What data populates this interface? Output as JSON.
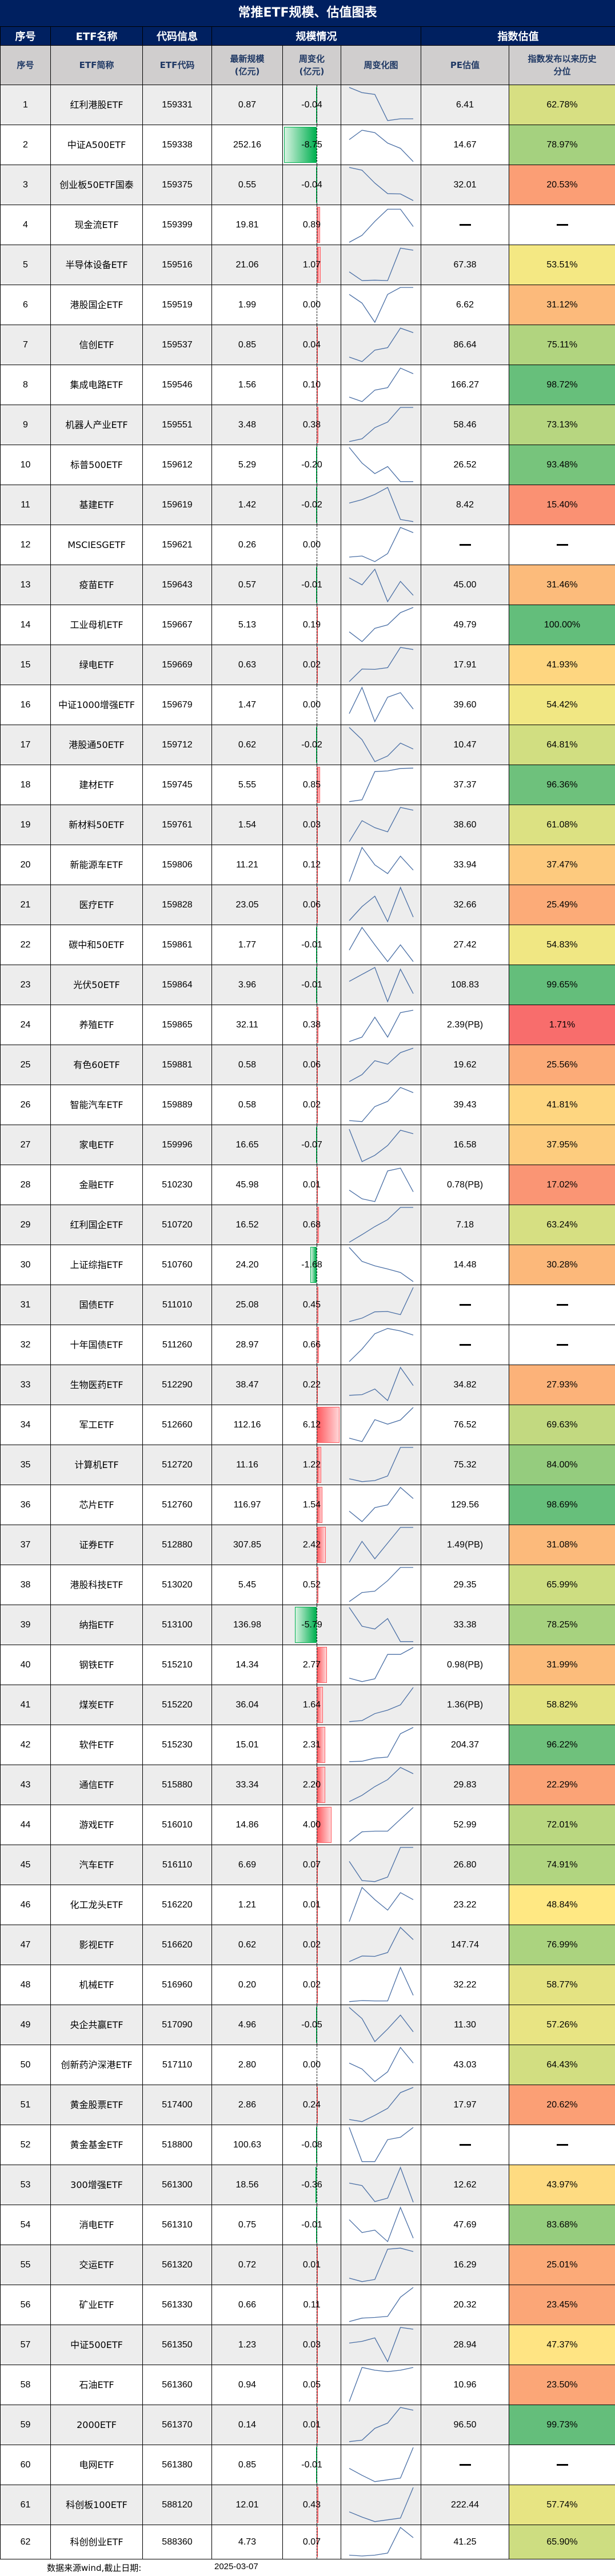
{
  "title": "常推ETF规模、估值图表",
  "header_groups": {
    "seq": "序号",
    "name": "ETF名称",
    "code": "代码信息",
    "scale": "规模情况",
    "valuation": "指数估值"
  },
  "header_cols": {
    "seq": "序号",
    "name": "ETF简称",
    "code": "ETF代码",
    "latest_line1": "最新规模",
    "latest_line2": "(亿元)",
    "chg_line1": "周变化",
    "chg_line2": "(亿元)",
    "chart": "周变化图",
    "pe": "PE估值",
    "pct_line1": "指数发布以来历史",
    "pct_line2": "分位"
  },
  "colors": {
    "title_bg": "#002060",
    "subheader_bg": "#D0CECE",
    "pos_bar": "#FF5A5F",
    "neg_bar": "#00B050",
    "spark_line": "#4A6FA5",
    "scale_low": "#F8696B",
    "scale_mid": "#FFEB84",
    "scale_high": "#63BE7B"
  },
  "rows": [
    {
      "no": "1",
      "name": "红利港股ETF",
      "code": "159331",
      "size": "0.87",
      "chg": "-0.04",
      "pe": "6.41",
      "pct": "62.78%",
      "spark": [
        1,
        0.85,
        0.8,
        0.05,
        0.1,
        0.1
      ]
    },
    {
      "no": "2",
      "name": "中证A500ETF",
      "code": "159338",
      "size": "252.16",
      "chg": "-8.75",
      "pe": "14.67",
      "pct": "78.97%",
      "spark": [
        0.65,
        0.92,
        0.85,
        0.55,
        0.4,
        0.02
      ]
    },
    {
      "no": "3",
      "name": "创业板50ETF国泰",
      "code": "159375",
      "size": "0.55",
      "chg": "-0.04",
      "pe": "32.01",
      "pct": "20.53%",
      "spark": [
        1,
        0.92,
        0.55,
        0.25,
        0.24,
        0.05
      ]
    },
    {
      "no": "4",
      "name": "现金流ETF",
      "code": "159399",
      "size": "19.81",
      "chg": "0.89",
      "pe": "—",
      "pct": "—",
      "spark": [
        0,
        0.2,
        0.6,
        0.95,
        0.95,
        0.45
      ]
    },
    {
      "no": "5",
      "name": "半导体设备ETF",
      "code": "159516",
      "size": "21.06",
      "chg": "1.07",
      "pe": "67.38",
      "pct": "53.51%",
      "spark": [
        0.3,
        0.05,
        0.06,
        0.05,
        0.98,
        0.92
      ]
    },
    {
      "no": "6",
      "name": "港股国企ETF",
      "code": "159519",
      "size": "1.99",
      "chg": "0.00",
      "pe": "6.62",
      "pct": "31.12%",
      "spark": [
        0.8,
        0.55,
        0.0,
        0.8,
        1,
        1
      ]
    },
    {
      "no": "7",
      "name": "信创ETF",
      "code": "159537",
      "size": "0.85",
      "chg": "0.04",
      "pe": "86.64",
      "pct": "75.11%",
      "spark": [
        0.15,
        0.02,
        0.35,
        0.42,
        0.98,
        0.85
      ]
    },
    {
      "no": "8",
      "name": "集成电路ETF",
      "code": "159546",
      "size": "1.56",
      "chg": "0.10",
      "pe": "166.27",
      "pct": "98.72%",
      "spark": [
        0.15,
        0.02,
        0.35,
        0.42,
        0.98,
        0.82
      ]
    },
    {
      "no": "9",
      "name": "机器人产业ETF",
      "code": "159551",
      "size": "3.48",
      "chg": "0.38",
      "pe": "58.46",
      "pct": "73.13%",
      "spark": [
        0.02,
        0.1,
        0.42,
        0.58,
        1,
        1
      ]
    },
    {
      "no": "10",
      "name": "标普500ETF",
      "code": "159612",
      "size": "5.29",
      "chg": "-0.20",
      "pe": "26.52",
      "pct": "93.48%",
      "spark": [
        1,
        0.55,
        0.25,
        0.45,
        0.02,
        0.02
      ]
    },
    {
      "no": "11",
      "name": "基建ETF",
      "code": "159619",
      "size": "1.42",
      "chg": "-0.02",
      "pe": "8.42",
      "pct": "15.40%",
      "spark": [
        0.55,
        0.65,
        0.8,
        1,
        0.08,
        0.02
      ]
    },
    {
      "no": "12",
      "name": "MSCIESGETF",
      "code": "159621",
      "size": "0.26",
      "chg": "0.00",
      "pe": "—",
      "pct": "—",
      "spark": [
        0.15,
        0.18,
        0.02,
        0.25,
        1,
        0.85
      ]
    },
    {
      "no": "13",
      "name": "疫苗ETF",
      "code": "159643",
      "size": "0.57",
      "chg": "-0.01",
      "pe": "45.00",
      "pct": "31.46%",
      "spark": [
        0.7,
        0.5,
        0.95,
        0.02,
        0.6,
        0.2
      ]
    },
    {
      "no": "14",
      "name": "工业母机ETF",
      "code": "159667",
      "size": "5.13",
      "chg": "0.19",
      "pe": "49.79",
      "pct": "100.00%",
      "spark": [
        0.3,
        0.02,
        0.4,
        0.5,
        0.85,
        1
      ]
    },
    {
      "no": "15",
      "name": "绿电ETF",
      "code": "159669",
      "size": "0.63",
      "chg": "0.02",
      "pe": "17.91",
      "pct": "41.93%",
      "spark": [
        0.02,
        0.38,
        0.37,
        0.42,
        1,
        0.94
      ]
    },
    {
      "no": "16",
      "name": "中证1000增强ETF",
      "code": "159679",
      "size": "1.47",
      "chg": "0.00",
      "pe": "39.60",
      "pct": "54.42%",
      "spark": [
        0.25,
        1,
        0.02,
        0.72,
        0.85,
        0.38
      ]
    },
    {
      "no": "17",
      "name": "港股通50ETF",
      "code": "159712",
      "size": "0.62",
      "chg": "-0.02",
      "pe": "10.47",
      "pct": "64.81%",
      "spark": [
        1,
        0.65,
        0.02,
        0.18,
        0.55,
        0.38
      ]
    },
    {
      "no": "18",
      "name": "建材ETF",
      "code": "159745",
      "size": "5.55",
      "chg": "0.85",
      "pe": "37.37",
      "pct": "96.36%",
      "spark": [
        0.02,
        0.07,
        0.88,
        0.9,
        0.97,
        0.98
      ]
    },
    {
      "no": "19",
      "name": "新材料50ETF",
      "code": "159761",
      "size": "1.54",
      "chg": "0.03",
      "pe": "38.60",
      "pct": "61.08%",
      "spark": [
        0.02,
        0.62,
        0.42,
        0.3,
        1,
        0.92
      ]
    },
    {
      "no": "20",
      "name": "新能源车ETF",
      "code": "159806",
      "size": "11.21",
      "chg": "0.12",
      "pe": "33.94",
      "pct": "37.47%",
      "spark": [
        0.02,
        1,
        0.5,
        0.25,
        0.75,
        0.35
      ]
    },
    {
      "no": "21",
      "name": "医疗ETF",
      "code": "159828",
      "size": "23.05",
      "chg": "0.06",
      "pe": "32.66",
      "pct": "25.49%",
      "spark": [
        0.05,
        0.45,
        0.75,
        0.02,
        1,
        0.15
      ]
    },
    {
      "no": "22",
      "name": "碳中和50ETF",
      "code": "159861",
      "size": "1.77",
      "chg": "-0.01",
      "pe": "27.42",
      "pct": "54.83%",
      "spark": [
        0.35,
        1,
        0.5,
        0.02,
        0.5,
        0.02
      ]
    },
    {
      "no": "23",
      "name": "光伏50ETF",
      "code": "159864",
      "size": "3.96",
      "chg": "-0.01",
      "pe": "108.83",
      "pct": "99.65%",
      "spark": [
        0.6,
        0.8,
        1,
        0.02,
        0.95,
        0.25
      ]
    },
    {
      "no": "24",
      "name": "养殖ETF",
      "code": "159865",
      "size": "32.11",
      "chg": "0.38",
      "pe": "2.39(PB)",
      "pct": "1.71%",
      "spark": [
        0.02,
        0.15,
        0.72,
        0.15,
        0.85,
        0.92
      ]
    },
    {
      "no": "25",
      "name": "有色60ETF",
      "code": "159881",
      "size": "0.58",
      "chg": "0.06",
      "pe": "19.62",
      "pct": "25.56%",
      "spark": [
        0.02,
        0.22,
        0.62,
        0.52,
        0.85,
        0.98
      ]
    },
    {
      "no": "26",
      "name": "智能汽车ETF",
      "code": "159889",
      "size": "0.58",
      "chg": "0.02",
      "pe": "39.43",
      "pct": "41.81%",
      "spark": [
        0.05,
        0.02,
        0.45,
        0.6,
        1,
        0.85
      ]
    },
    {
      "no": "27",
      "name": "家电ETF",
      "code": "159996",
      "size": "16.65",
      "chg": "-0.07",
      "pe": "16.58",
      "pct": "37.95%",
      "spark": [
        0.95,
        0.02,
        0.2,
        0.48,
        0.92,
        0.82
      ]
    },
    {
      "no": "28",
      "name": "金融ETF",
      "code": "510230",
      "size": "45.98",
      "chg": "0.01",
      "pe": "0.78(PB)",
      "pct": "17.02%",
      "spark": [
        0.35,
        0.1,
        0.02,
        0.9,
        0.98,
        0.3
      ]
    },
    {
      "no": "29",
      "name": "红利国企ETF",
      "code": "510720",
      "size": "16.52",
      "chg": "0.68",
      "pe": "7.18",
      "pct": "63.24%",
      "spark": [
        0.0,
        0.22,
        0.45,
        0.65,
        1,
        1
      ]
    },
    {
      "no": "30",
      "name": "上证综指ETF",
      "code": "510760",
      "size": "24.20",
      "chg": "-1.68",
      "pe": "14.48",
      "pct": "30.28%",
      "spark": [
        1,
        0.6,
        0.47,
        0.38,
        0.28,
        0.02
      ]
    },
    {
      "no": "31",
      "name": "国债ETF",
      "code": "511010",
      "size": "25.08",
      "chg": "0.45",
      "pe": "—",
      "pct": "—",
      "spark": [
        0.02,
        0.12,
        0.3,
        0.31,
        0.22,
        1
      ]
    },
    {
      "no": "32",
      "name": "十年国债ETF",
      "code": "511260",
      "size": "28.97",
      "chg": "0.66",
      "pe": "—",
      "pct": "—",
      "spark": [
        0.02,
        0.38,
        0.82,
        0.97,
        0.9,
        0.78
      ]
    },
    {
      "no": "33",
      "name": "生物医药ETF",
      "code": "512290",
      "size": "38.47",
      "chg": "0.22",
      "pe": "34.82",
      "pct": "27.93%",
      "spark": [
        0.2,
        0.22,
        0.38,
        0.05,
        1,
        0.48
      ]
    },
    {
      "no": "34",
      "name": "军工ETF",
      "code": "512660",
      "size": "112.16",
      "chg": "6.12",
      "pe": "76.52",
      "pct": "69.63%",
      "spark": [
        0.12,
        0.02,
        0.65,
        0.52,
        0.64,
        1
      ]
    },
    {
      "no": "35",
      "name": "计算机ETF",
      "code": "512720",
      "size": "11.16",
      "chg": "1.22",
      "pe": "75.32",
      "pct": "84.00%",
      "spark": [
        0.1,
        0.02,
        0.05,
        0.18,
        1,
        1
      ]
    },
    {
      "no": "36",
      "name": "芯片ETF",
      "code": "512760",
      "size": "116.97",
      "chg": "1.54",
      "pe": "129.56",
      "pct": "98.69%",
      "spark": [
        0.32,
        0.02,
        0.42,
        0.5,
        1,
        0.68
      ]
    },
    {
      "no": "37",
      "name": "证券ETF",
      "code": "512880",
      "size": "307.85",
      "chg": "2.42",
      "pe": "1.49(PB)",
      "pct": "31.08%",
      "spark": [
        0.0,
        0.6,
        0.1,
        0.55,
        1,
        1
      ]
    },
    {
      "no": "38",
      "name": "港股科技ETF",
      "code": "513020",
      "size": "5.45",
      "chg": "0.52",
      "pe": "29.35",
      "pct": "65.99%",
      "spark": [
        0.02,
        0.28,
        0.32,
        0.62,
        1,
        1
      ]
    },
    {
      "no": "39",
      "name": "纳指ETF",
      "code": "513100",
      "size": "136.98",
      "chg": "-5.79",
      "pe": "33.38",
      "pct": "78.25%",
      "spark": [
        1,
        0.46,
        0.38,
        0.68,
        0.02,
        0.02
      ]
    },
    {
      "no": "40",
      "name": "钢铁ETF",
      "code": "515210",
      "size": "14.34",
      "chg": "2.77",
      "pe": "0.98(PB)",
      "pct": "31.99%",
      "spark": [
        0.12,
        0.02,
        0.1,
        0.8,
        0.8,
        1
      ]
    },
    {
      "no": "41",
      "name": "煤炭ETF",
      "code": "515220",
      "size": "36.04",
      "chg": "1.64",
      "pe": "1.36(PB)",
      "pct": "58.82%",
      "spark": [
        0.02,
        0.05,
        0.25,
        0.35,
        0.5,
        1
      ]
    },
    {
      "no": "42",
      "name": "软件ETF",
      "code": "515230",
      "size": "15.01",
      "chg": "2.31",
      "pe": "204.37",
      "pct": "96.22%",
      "spark": [
        0.02,
        0.03,
        0.12,
        0.15,
        0.82,
        1
      ]
    },
    {
      "no": "43",
      "name": "通信ETF",
      "code": "515880",
      "size": "33.34",
      "chg": "2.20",
      "pe": "29.83",
      "pct": "22.29%",
      "spark": [
        0.02,
        0.2,
        0.45,
        0.65,
        1,
        0.82
      ]
    },
    {
      "no": "44",
      "name": "游戏ETF",
      "code": "516010",
      "size": "14.86",
      "chg": "4.00",
      "pe": "52.99",
      "pct": "72.01%",
      "spark": [
        0.02,
        0.3,
        0.32,
        0.32,
        0.66,
        1
      ]
    },
    {
      "no": "45",
      "name": "汽车ETF",
      "code": "516110",
      "size": "6.69",
      "chg": "0.07",
      "pe": "26.80",
      "pct": "74.91%",
      "spark": [
        0.6,
        0.05,
        0.02,
        0.15,
        1,
        1
      ]
    },
    {
      "no": "46",
      "name": "化工龙头ETF",
      "code": "516220",
      "size": "1.21",
      "chg": "0.01",
      "pe": "23.22",
      "pct": "48.84%",
      "spark": [
        0.02,
        1,
        0.65,
        0.35,
        0.85,
        0.65
      ]
    },
    {
      "no": "47",
      "name": "影视ETF",
      "code": "516620",
      "size": "0.62",
      "chg": "0.02",
      "pe": "147.74",
      "pct": "76.99%",
      "spark": [
        0.02,
        0.18,
        0.17,
        0.28,
        1,
        0.65
      ]
    },
    {
      "no": "48",
      "name": "机械ETF",
      "code": "516960",
      "size": "0.20",
      "chg": "0.02",
      "pe": "32.22",
      "pct": "58.77%",
      "spark": [
        0.02,
        0.05,
        0.04,
        0.04,
        1,
        0.2
      ]
    },
    {
      "no": "49",
      "name": "央企共赢ETF",
      "code": "517090",
      "size": "4.96",
      "chg": "-0.05",
      "pe": "11.30",
      "pct": "57.26%",
      "spark": [
        1,
        0.68,
        0.02,
        0.38,
        0.78,
        0.3
      ]
    },
    {
      "no": "50",
      "name": "创新药沪深港ETF",
      "code": "517110",
      "size": "2.80",
      "chg": "0.00",
      "pe": "43.03",
      "pct": "64.43%",
      "spark": [
        0.55,
        0.38,
        0.02,
        0.3,
        1,
        0.55
      ]
    },
    {
      "no": "51",
      "name": "黄金股票ETF",
      "code": "517400",
      "size": "2.86",
      "chg": "0.24",
      "pe": "17.97",
      "pct": "20.62%",
      "spark": [
        0.08,
        0.02,
        0.2,
        0.4,
        0.85,
        1
      ]
    },
    {
      "no": "52",
      "name": "黄金基金ETF",
      "code": "518800",
      "size": "100.63",
      "chg": "-0.08",
      "pe": "—",
      "pct": "—",
      "spark": [
        1,
        0.02,
        0.02,
        0.65,
        0.72,
        1
      ]
    },
    {
      "no": "53",
      "name": "300增强ETF",
      "code": "561300",
      "size": "18.56",
      "chg": "-0.36",
      "pe": "12.62",
      "pct": "43.97%",
      "spark": [
        0.55,
        0.48,
        0.02,
        0.12,
        1,
        0.0
      ]
    },
    {
      "no": "54",
      "name": "消电ETF",
      "code": "561310",
      "size": "0.75",
      "chg": "-0.01",
      "pe": "47.69",
      "pct": "83.68%",
      "spark": [
        0.65,
        0.28,
        0.35,
        0.02,
        1,
        0.12
      ]
    },
    {
      "no": "55",
      "name": "交运ETF",
      "code": "561320",
      "size": "0.72",
      "chg": "0.01",
      "pe": "16.29",
      "pct": "25.01%",
      "spark": [
        0.12,
        0.02,
        0.08,
        0.95,
        0.98,
        0.88
      ]
    },
    {
      "no": "56",
      "name": "矿业ETF",
      "code": "561330",
      "size": "0.66",
      "chg": "0.11",
      "pe": "20.32",
      "pct": "23.45%",
      "spark": [
        0.02,
        0.12,
        0.14,
        0.17,
        0.72,
        1
      ]
    },
    {
      "no": "57",
      "name": "中证500ETF",
      "code": "561350",
      "size": "1.23",
      "chg": "0.03",
      "pe": "28.94",
      "pct": "47.37%",
      "spark": [
        0.55,
        0.6,
        0.7,
        0.02,
        1,
        0.95
      ]
    },
    {
      "no": "58",
      "name": "石油ETF",
      "code": "561360",
      "size": "0.94",
      "chg": "0.05",
      "pe": "10.96",
      "pct": "23.50%",
      "spark": [
        0.02,
        1,
        0.92,
        0.88,
        0.92,
        1
      ]
    },
    {
      "no": "59",
      "name": "2000ETF",
      "code": "561370",
      "size": "0.14",
      "chg": "0.01",
      "pe": "96.50",
      "pct": "99.73%",
      "spark": [
        0.02,
        0.06,
        0.4,
        0.55,
        1,
        0.92
      ]
    },
    {
      "no": "60",
      "name": "电网ETF",
      "code": "561380",
      "size": "0.85",
      "chg": "-0.01",
      "pe": "—",
      "pct": "—",
      "spark": [
        0.4,
        0.2,
        0.02,
        0.07,
        0.12,
        1
      ]
    },
    {
      "no": "61",
      "name": "科创板100ETF",
      "code": "588120",
      "size": "12.01",
      "chg": "0.43",
      "pe": "222.44",
      "pct": "57.74%",
      "spark": [
        0.3,
        0.15,
        0.02,
        0.07,
        0.12,
        1
      ]
    },
    {
      "no": "62",
      "name": "科创创业ETF",
      "code": "588360",
      "size": "4.73",
      "chg": "0.07",
      "pe": "41.25",
      "pct": "65.90%",
      "spark": [
        0.05,
        0.02,
        0.05,
        0.12,
        1,
        0.65
      ]
    }
  ],
  "footer": {
    "source": "数据来源wind,截止日期:",
    "date": "2025-03-07"
  }
}
